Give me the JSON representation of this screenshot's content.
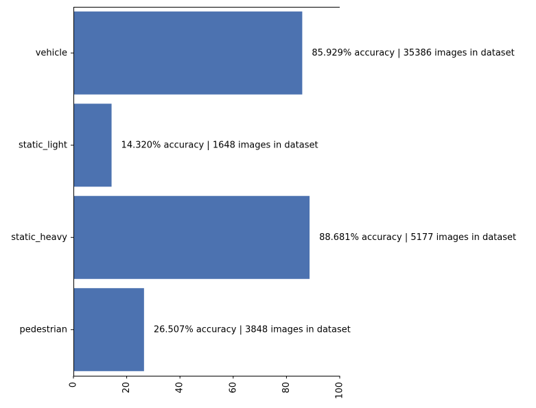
{
  "chart_data": {
    "type": "bar",
    "orientation": "horizontal",
    "categories": [
      "vehicle",
      "static_light",
      "static_heavy",
      "pedestrian"
    ],
    "values": [
      85.929,
      14.32,
      88.681,
      26.507
    ],
    "data_labels": [
      "85.929% accuracy | 35386 images in dataset",
      "14.320% accuracy | 1648 images in dataset",
      "88.681% accuracy | 5177 images in dataset",
      "26.507% accuracy | 3848 images in dataset"
    ],
    "xlim": [
      0,
      100
    ],
    "xticks": [
      0,
      20,
      40,
      60,
      80,
      100
    ],
    "xtick_labels": [
      "0",
      "20",
      "40",
      "60",
      "80",
      "100"
    ],
    "xtick_rotation": "vertical",
    "bar_color": "#4c72b0",
    "grid": false,
    "legend": "none",
    "spines": [
      "left",
      "top",
      "bottom"
    ]
  }
}
